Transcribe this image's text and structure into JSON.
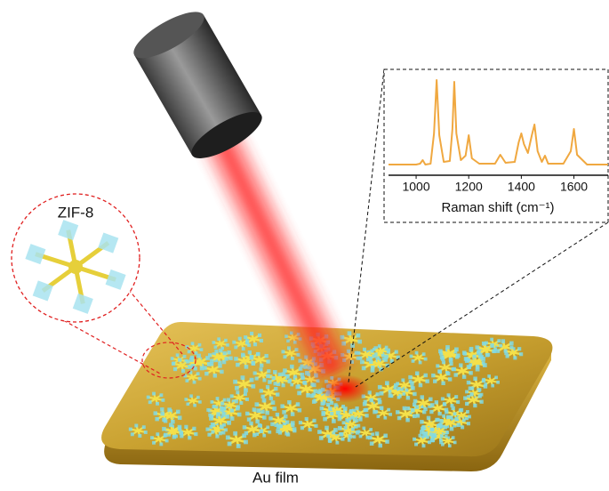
{
  "labels": {
    "zif8": "ZIF-8",
    "au_film": "Au film"
  },
  "inset": {
    "xlabel": "Raman shift (cm⁻¹)",
    "xlim": [
      895,
      1730
    ],
    "xticks": [
      1000,
      1200,
      1400,
      1600
    ],
    "ylim": [
      0,
      105
    ],
    "spectrum": {
      "color": "#f0a840",
      "x": [
        895,
        1000,
        1015,
        1025,
        1035,
        1055,
        1068,
        1078,
        1088,
        1105,
        1128,
        1138,
        1145,
        1153,
        1170,
        1188,
        1200,
        1212,
        1240,
        1300,
        1320,
        1340,
        1375,
        1390,
        1400,
        1410,
        1425,
        1440,
        1450,
        1462,
        1478,
        1490,
        1502,
        1560,
        1588,
        1600,
        1612,
        1650,
        1730
      ],
      "values": [
        5,
        5,
        6,
        10,
        5,
        6,
        40,
        100,
        38,
        8,
        9,
        45,
        98,
        40,
        10,
        15,
        38,
        12,
        6,
        6,
        16,
        7,
        8,
        30,
        40,
        28,
        18,
        38,
        50,
        20,
        8,
        15,
        6,
        6,
        20,
        45,
        16,
        5,
        5
      ]
    }
  }
}
